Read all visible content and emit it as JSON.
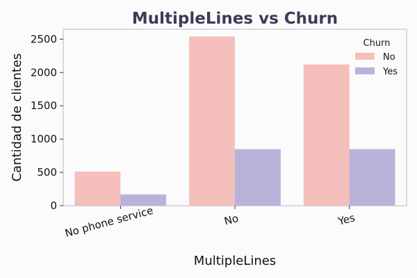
{
  "chart_data": {
    "type": "bar",
    "title": "MultipleLines vs Churn",
    "xlabel": "MultipleLines",
    "ylabel": "Cantidad de clientes",
    "categories": [
      "No phone service",
      "No",
      "Yes"
    ],
    "series": [
      {
        "name": "No",
        "values": [
          512,
          2541,
          2121
        ],
        "color": "#f5bfbb"
      },
      {
        "name": "Yes",
        "values": [
          170,
          849,
          850
        ],
        "color": "#b9b2d9"
      }
    ],
    "ylim": [
      0,
      2650
    ],
    "yticks": [
      0,
      500,
      1000,
      1500,
      2000,
      2500
    ],
    "grid": false,
    "legend": {
      "title": "Churn",
      "placement": "top-right"
    },
    "colors": {
      "title": "#3d3b57",
      "frame": "#b9b2d9"
    }
  }
}
